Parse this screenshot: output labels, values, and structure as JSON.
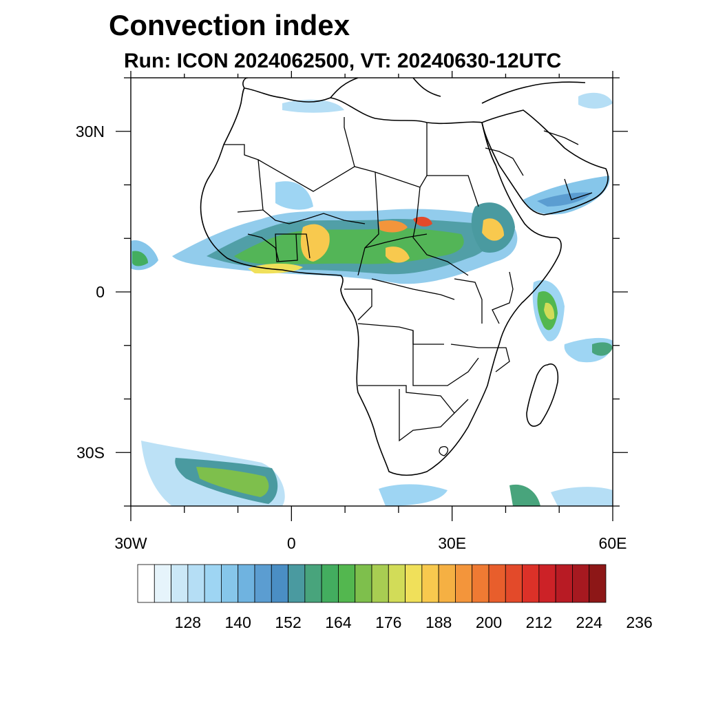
{
  "title": "Convection index",
  "subtitle": "Run: ICON 2024062500,  VT: 20240630-12UTC",
  "map": {
    "lon_range": [
      -30,
      60
    ],
    "lat_range": [
      -40,
      40
    ],
    "lon_ticks": [
      {
        "value": -30,
        "label": "30W"
      },
      {
        "value": 0,
        "label": "0"
      },
      {
        "value": 30,
        "label": "30E"
      },
      {
        "value": 60,
        "label": "60E"
      }
    ],
    "lat_ticks": [
      {
        "value": 30,
        "label": "30N"
      },
      {
        "value": 0,
        "label": "0"
      },
      {
        "value": -30,
        "label": "30S"
      }
    ]
  },
  "colorbar": {
    "colors": [
      "#ffffff",
      "#e6f4fb",
      "#cbe8f7",
      "#b5def5",
      "#9ed5f3",
      "#86c6ea",
      "#6fb3e0",
      "#5b9dd1",
      "#4a8ec4",
      "#4a9aa0",
      "#48a47c",
      "#43ad5f",
      "#53b74f",
      "#7ebf4c",
      "#a8cd52",
      "#d2dc58",
      "#f0e05a",
      "#f8c94e",
      "#f5b043",
      "#f3953b",
      "#ef7a33",
      "#e85e2c",
      "#e34a2a",
      "#dc3128",
      "#cc2227",
      "#b81b24",
      "#a61920",
      "#8d1717"
    ],
    "labels": [
      "128",
      "140",
      "152",
      "164",
      "176",
      "188",
      "200",
      "212",
      "224",
      "236"
    ]
  }
}
